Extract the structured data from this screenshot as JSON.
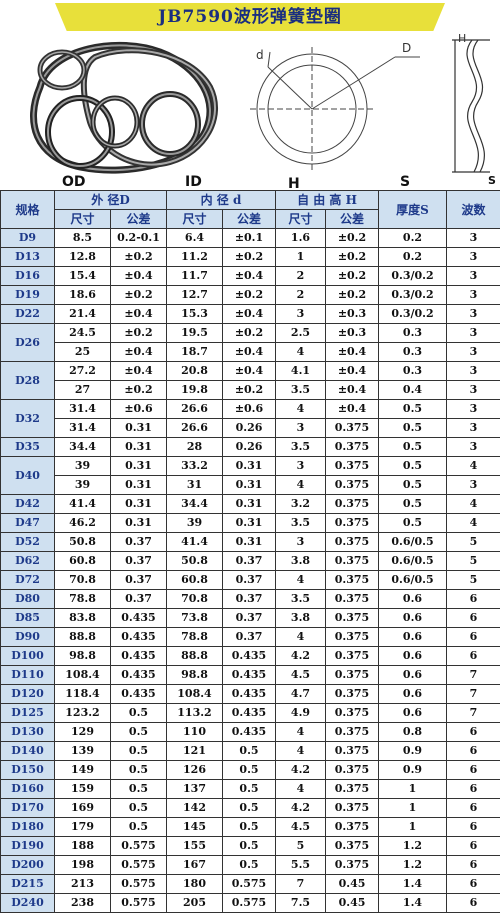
{
  "title": "JB7590波形弹簧垫圈",
  "diagram_labels": {
    "od": "OD",
    "id": "ID",
    "h": "H",
    "s": "S",
    "d_small": "d",
    "d_large": "D",
    "h_small": "H",
    "s_small": "S"
  },
  "headers": {
    "spec": "规格",
    "outer": "外 径D",
    "inner": "内 径 d",
    "free_height": "自 由 高 H",
    "thickness": "厚度S",
    "waves": "波数",
    "size": "尺寸",
    "tolerance": "公差"
  },
  "rows": [
    {
      "spec": "D9",
      "od": "8.5",
      "od_tol": "0.2-0.1",
      "id": "6.4",
      "id_tol": "±0.1",
      "h": "1.6",
      "h_tol": "±0.2",
      "s": "0.2",
      "waves": "3"
    },
    {
      "spec": "D13",
      "od": "12.8",
      "od_tol": "±0.2",
      "id": "11.2",
      "id_tol": "±0.2",
      "h": "1",
      "h_tol": "±0.2",
      "s": "0.2",
      "waves": "3"
    },
    {
      "spec": "D16",
      "od": "15.4",
      "od_tol": "±0.4",
      "id": "11.7",
      "id_tol": "±0.4",
      "h": "2",
      "h_tol": "±0.2",
      "s": "0.3/0.2",
      "waves": "3"
    },
    {
      "spec": "D19",
      "od": "18.6",
      "od_tol": "±0.2",
      "id": "12.7",
      "id_tol": "±0.2",
      "h": "2",
      "h_tol": "±0.2",
      "s": "0.3/0.2",
      "waves": "3"
    },
    {
      "spec": "D22",
      "od": "21.4",
      "od_tol": "±0.4",
      "id": "15.3",
      "id_tol": "±0.4",
      "h": "3",
      "h_tol": "±0.3",
      "s": "0.3/0.2",
      "waves": "3"
    },
    {
      "spec": "D26",
      "od": "24.5",
      "od_tol": "±0.2",
      "id": "19.5",
      "id_tol": "±0.2",
      "h": "2.5",
      "h_tol": "±0.3",
      "s": "0.3",
      "waves": "3",
      "rowspan": 2
    },
    {
      "od": "25",
      "od_tol": "±0.4",
      "id": "18.7",
      "id_tol": "±0.4",
      "h": "4",
      "h_tol": "±0.4",
      "s": "0.3",
      "waves": "3"
    },
    {
      "spec": "D28",
      "od": "27.2",
      "od_tol": "±0.4",
      "id": "20.8",
      "id_tol": "±0.4",
      "h": "4.1",
      "h_tol": "±0.4",
      "s": "0.3",
      "waves": "3",
      "rowspan": 2
    },
    {
      "od": "27",
      "od_tol": "±0.2",
      "id": "19.8",
      "id_tol": "±0.2",
      "h": "3.5",
      "h_tol": "±0.4",
      "s": "0.4",
      "waves": "3"
    },
    {
      "spec": "D32",
      "od": "31.4",
      "od_tol": "±0.6",
      "id": "26.6",
      "id_tol": "±0.6",
      "h": "4",
      "h_tol": "±0.4",
      "s": "0.5",
      "waves": "3",
      "rowspan": 2
    },
    {
      "od": "31.4",
      "od_tol": "0.31",
      "id": "26.6",
      "id_tol": "0.26",
      "h": "3",
      "h_tol": "0.375",
      "s": "0.5",
      "waves": "3"
    },
    {
      "spec": "D35",
      "od": "34.4",
      "od_tol": "0.31",
      "id": "28",
      "id_tol": "0.26",
      "h": "3.5",
      "h_tol": "0.375",
      "s": "0.5",
      "waves": "3"
    },
    {
      "spec": "D40",
      "od": "39",
      "od_tol": "0.31",
      "id": "33.2",
      "id_tol": "0.31",
      "h": "3",
      "h_tol": "0.375",
      "s": "0.5",
      "waves": "4",
      "rowspan": 2
    },
    {
      "od": "39",
      "od_tol": "0.31",
      "id": "31",
      "id_tol": "0.31",
      "h": "4",
      "h_tol": "0.375",
      "s": "0.5",
      "waves": "3"
    },
    {
      "spec": "D42",
      "od": "41.4",
      "od_tol": "0.31",
      "id": "34.4",
      "id_tol": "0.31",
      "h": "3.2",
      "h_tol": "0.375",
      "s": "0.5",
      "waves": "4"
    },
    {
      "spec": "D47",
      "od": "46.2",
      "od_tol": "0.31",
      "id": "39",
      "id_tol": "0.31",
      "h": "3.5",
      "h_tol": "0.375",
      "s": "0.5",
      "waves": "4"
    },
    {
      "spec": "D52",
      "od": "50.8",
      "od_tol": "0.37",
      "id": "41.4",
      "id_tol": "0.31",
      "h": "3",
      "h_tol": "0.375",
      "s": "0.6/0.5",
      "waves": "5"
    },
    {
      "spec": "D62",
      "od": "60.8",
      "od_tol": "0.37",
      "id": "50.8",
      "id_tol": "0.37",
      "h": "3.8",
      "h_tol": "0.375",
      "s": "0.6/0.5",
      "waves": "5"
    },
    {
      "spec": "D72",
      "od": "70.8",
      "od_tol": "0.37",
      "id": "60.8",
      "id_tol": "0.37",
      "h": "4",
      "h_tol": "0.375",
      "s": "0.6/0.5",
      "waves": "5"
    },
    {
      "spec": "D80",
      "od": "78.8",
      "od_tol": "0.37",
      "id": "70.8",
      "id_tol": "0.37",
      "h": "3.5",
      "h_tol": "0.375",
      "s": "0.6",
      "waves": "6"
    },
    {
      "spec": "D85",
      "od": "83.8",
      "od_tol": "0.435",
      "id": "73.8",
      "id_tol": "0.37",
      "h": "3.8",
      "h_tol": "0.375",
      "s": "0.6",
      "waves": "6"
    },
    {
      "spec": "D90",
      "od": "88.8",
      "od_tol": "0.435",
      "id": "78.8",
      "id_tol": "0.37",
      "h": "4",
      "h_tol": "0.375",
      "s": "0.6",
      "waves": "6"
    },
    {
      "spec": "D100",
      "od": "98.8",
      "od_tol": "0.435",
      "id": "88.8",
      "id_tol": "0.435",
      "h": "4.2",
      "h_tol": "0.375",
      "s": "0.6",
      "waves": "6"
    },
    {
      "spec": "D110",
      "od": "108.4",
      "od_tol": "0.435",
      "id": "98.8",
      "id_tol": "0.435",
      "h": "4.5",
      "h_tol": "0.375",
      "s": "0.6",
      "waves": "7"
    },
    {
      "spec": "D120",
      "od": "118.4",
      "od_tol": "0.435",
      "id": "108.4",
      "id_tol": "0.435",
      "h": "4.7",
      "h_tol": "0.375",
      "s": "0.6",
      "waves": "7"
    },
    {
      "spec": "D125",
      "od": "123.2",
      "od_tol": "0.5",
      "id": "113.2",
      "id_tol": "0.435",
      "h": "4.9",
      "h_tol": "0.375",
      "s": "0.6",
      "waves": "7"
    },
    {
      "spec": "D130",
      "od": "129",
      "od_tol": "0.5",
      "id": "110",
      "id_tol": "0.435",
      "h": "4",
      "h_tol": "0.375",
      "s": "0.8",
      "waves": "6"
    },
    {
      "spec": "D140",
      "od": "139",
      "od_tol": "0.5",
      "id": "121",
      "id_tol": "0.5",
      "h": "4",
      "h_tol": "0.375",
      "s": "0.9",
      "waves": "6"
    },
    {
      "spec": "D150",
      "od": "149",
      "od_tol": "0.5",
      "id": "126",
      "id_tol": "0.5",
      "h": "4.2",
      "h_tol": "0.375",
      "s": "0.9",
      "waves": "6"
    },
    {
      "spec": "D160",
      "od": "159",
      "od_tol": "0.5",
      "id": "137",
      "id_tol": "0.5",
      "h": "4",
      "h_tol": "0.375",
      "s": "1",
      "waves": "6"
    },
    {
      "spec": "D170",
      "od": "169",
      "od_tol": "0.5",
      "id": "142",
      "id_tol": "0.5",
      "h": "4.2",
      "h_tol": "0.375",
      "s": "1",
      "waves": "6"
    },
    {
      "spec": "D180",
      "od": "179",
      "od_tol": "0.5",
      "id": "145",
      "id_tol": "0.5",
      "h": "4.5",
      "h_tol": "0.375",
      "s": "1",
      "waves": "6"
    },
    {
      "spec": "D190",
      "od": "188",
      "od_tol": "0.575",
      "id": "155",
      "id_tol": "0.5",
      "h": "5",
      "h_tol": "0.375",
      "s": "1.2",
      "waves": "6"
    },
    {
      "spec": "D200",
      "od": "198",
      "od_tol": "0.575",
      "id": "167",
      "id_tol": "0.5",
      "h": "5.5",
      "h_tol": "0.375",
      "s": "1.2",
      "waves": "6"
    },
    {
      "spec": "D215",
      "od": "213",
      "od_tol": "0.575",
      "id": "180",
      "id_tol": "0.575",
      "h": "7",
      "h_tol": "0.45",
      "s": "1.4",
      "waves": "6"
    },
    {
      "spec": "D240",
      "od": "238",
      "od_tol": "0.575",
      "id": "205",
      "id_tol": "0.575",
      "h": "7.5",
      "h_tol": "0.45",
      "s": "1.4",
      "waves": "6"
    }
  ]
}
